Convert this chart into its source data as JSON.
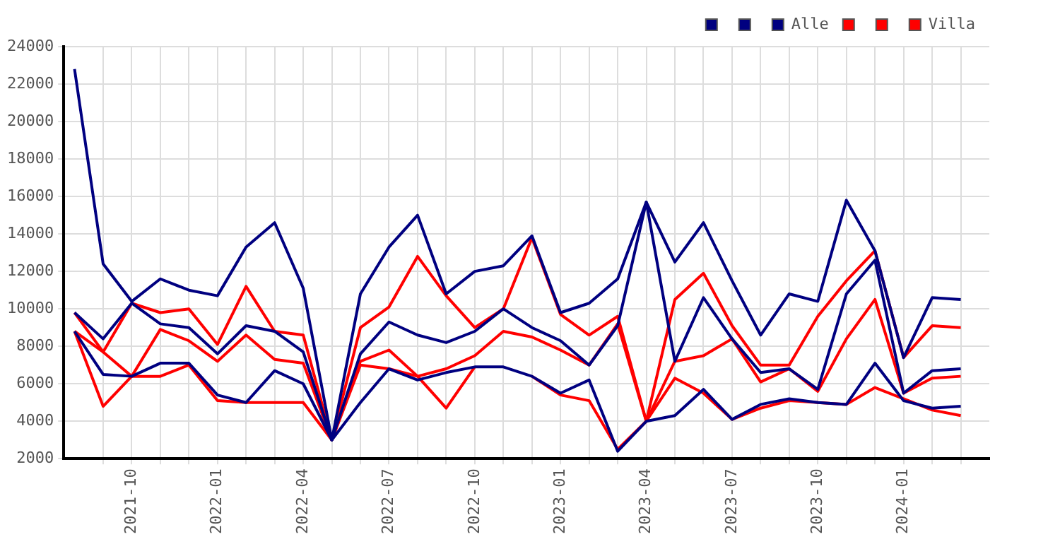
{
  "chart_data": {
    "type": "line",
    "x": [
      "2021-08",
      "2021-09",
      "2021-10",
      "2021-11",
      "2021-12",
      "2022-01",
      "2022-02",
      "2022-03",
      "2022-04",
      "2022-05",
      "2022-06",
      "2022-07",
      "2022-08",
      "2022-09",
      "2022-10",
      "2022-11",
      "2022-12",
      "2023-01",
      "2023-02",
      "2023-03",
      "2023-04",
      "2023-05",
      "2023-06",
      "2023-07",
      "2023-08",
      "2023-09",
      "2023-10",
      "2023-11",
      "2023-12",
      "2024-01",
      "2024-02",
      "2024-03"
    ],
    "series": [
      {
        "color": "#000080",
        "values": [
          22800,
          12400,
          10400,
          11600,
          11000,
          10700,
          13300,
          14600,
          11100,
          3000,
          10800,
          13300,
          15000,
          10800,
          12000,
          12300,
          13900,
          9800,
          10300,
          11600,
          15700,
          12500,
          14600,
          11500,
          8600,
          10800,
          10400,
          15800,
          13100,
          7400,
          10600,
          10500
        ]
      },
      {
        "color": "#000080",
        "values": [
          9800,
          8400,
          10300,
          9200,
          9000,
          7600,
          9100,
          8800,
          7700,
          3000,
          7600,
          9300,
          8600,
          8200,
          8800,
          10000,
          9000,
          8300,
          7000,
          9100,
          15700,
          7200,
          10600,
          8400,
          6600,
          6800,
          5700,
          10800,
          12600,
          5500,
          6700,
          6800
        ]
      },
      {
        "name": "Alle",
        "color": "#000080",
        "values": [
          8800,
          6500,
          6400,
          7100,
          7100,
          5400,
          5000,
          6700,
          6000,
          3000,
          5000,
          6800,
          6200,
          6600,
          6900,
          6900,
          6400,
          5500,
          6200,
          2400,
          4000,
          4300,
          5700,
          4100,
          4900,
          5200,
          5000,
          4900,
          7100,
          5100,
          4700,
          4800
        ]
      },
      {
        "color": "#ff0000",
        "values": [
          9800,
          7700,
          10300,
          9800,
          10000,
          8100,
          11200,
          8800,
          8600,
          3000,
          9000,
          10100,
          12800,
          10700,
          9000,
          10000,
          13800,
          9700,
          8600,
          9600,
          4000,
          10500,
          11900,
          9100,
          7000,
          7000,
          9600,
          11500,
          13100,
          7400,
          9100,
          9000
        ]
      },
      {
        "color": "#ff0000",
        "values": [
          8800,
          7700,
          6400,
          8900,
          8300,
          7200,
          8600,
          7300,
          7100,
          3000,
          7200,
          7800,
          6400,
          6800,
          7500,
          8800,
          8500,
          7800,
          7000,
          9200,
          4000,
          7200,
          7500,
          8400,
          6100,
          6800,
          5600,
          8400,
          10500,
          5500,
          6300,
          6400
        ]
      },
      {
        "name": "Villa",
        "color": "#ff0000",
        "values": [
          8800,
          4800,
          6400,
          6400,
          7000,
          5100,
          5000,
          5000,
          5000,
          3000,
          7000,
          6800,
          6400,
          4700,
          6900,
          null,
          6400,
          5400,
          5100,
          2500,
          4000,
          6300,
          5500,
          4100,
          4700,
          5100,
          5000,
          4900,
          5800,
          5200,
          4600,
          4300
        ]
      }
    ],
    "xlim": [
      "2021-07-20",
      "2024-04-01"
    ],
    "xticks": [
      {
        "value": "2021-09",
        "label": null
      },
      "2021-10",
      {
        "value": "2021-11",
        "label": null
      },
      {
        "value": "2021-12",
        "label": null
      },
      "2022-01",
      {
        "value": "2022-02",
        "label": null
      },
      {
        "value": "2022-03",
        "label": null
      },
      "2022-04",
      {
        "value": "2022-05",
        "label": null
      },
      {
        "value": "2022-06",
        "label": null
      },
      "2022-07",
      {
        "value": "2022-08",
        "label": null
      },
      {
        "value": "2022-09",
        "label": null
      },
      "2022-10",
      {
        "value": "2022-11",
        "label": null
      },
      {
        "value": "2022-12",
        "label": null
      },
      "2023-01",
      {
        "value": "2023-02",
        "label": null
      },
      {
        "value": "2023-03",
        "label": null
      },
      "2023-04",
      {
        "value": "2023-05",
        "label": null
      },
      {
        "value": "2023-06",
        "label": null
      },
      "2023-07",
      {
        "value": "2023-08",
        "label": null
      },
      {
        "value": "2023-09",
        "label": null
      },
      "2023-10",
      {
        "value": "2023-11",
        "label": null
      },
      {
        "value": "2023-12",
        "label": null
      },
      "2024-01",
      {
        "value": "2024-02",
        "label": null
      },
      {
        "value": "2024-03",
        "label": null
      }
    ],
    "ylim": [
      2000,
      24000
    ],
    "yticks": [
      2000,
      4000,
      6000,
      8000,
      10000,
      12000,
      14000,
      16000,
      18000,
      20000,
      22000,
      24000
    ],
    "grid": true,
    "legend": "top right",
    "marker": "none",
    "line_style": "solid"
  }
}
